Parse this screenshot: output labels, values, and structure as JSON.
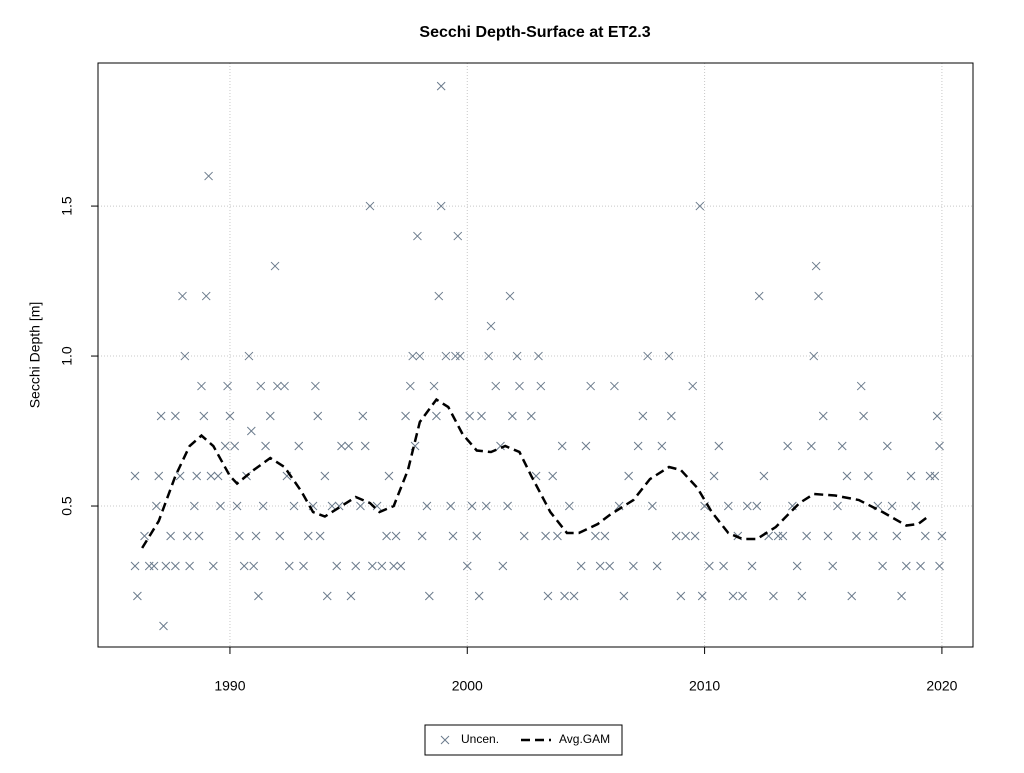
{
  "chart_data": {
    "type": "scatter",
    "title": "Secchi Depth-Surface at ET2.3",
    "y_label": "Secchi Depth [m]",
    "xlim": [
      1984.44,
      2021.31
    ],
    "ylim": [
      0.03,
      1.977
    ],
    "xticks": [
      1990,
      2000,
      2010,
      2020
    ],
    "yticks": [
      0.5,
      {
        "value": 1,
        "label": "1.0"
      },
      1.5
    ],
    "grid": true,
    "legend": "bottom",
    "series": [
      {
        "name": "Uncen.",
        "type": "scatter",
        "color": "#6b7b8c",
        "x": [
          1986.0,
          1986.0,
          1986.1,
          1986.4,
          1986.6,
          1986.8,
          1986.9,
          1987.0,
          1987.1,
          1987.2,
          1987.3,
          1987.5,
          1987.7,
          1987.7,
          1987.9,
          1988.0,
          1988.1,
          1988.2,
          1988.3,
          1988.5,
          1988.6,
          1988.7,
          1988.8,
          1988.9,
          1989.0,
          1989.1,
          1989.2,
          1989.3,
          1989.5,
          1989.6,
          1989.8,
          1989.9,
          1990.0,
          1990.2,
          1990.3,
          1990.4,
          1990.6,
          1990.7,
          1990.8,
          1990.9,
          1991.0,
          1991.1,
          1991.2,
          1991.3,
          1991.4,
          1991.5,
          1991.7,
          1991.9,
          1992.0,
          1992.1,
          1992.3,
          1992.4,
          1992.5,
          1992.7,
          1992.9,
          1993.1,
          1993.3,
          1993.5,
          1993.6,
          1993.7,
          1993.8,
          1994.0,
          1994.1,
          1994.3,
          1994.5,
          1994.6,
          1994.7,
          1995.0,
          1995.1,
          1995.3,
          1995.5,
          1995.6,
          1995.7,
          1995.9,
          1996.0,
          1996.2,
          1996.4,
          1996.6,
          1996.7,
          1996.9,
          1997.0,
          1997.2,
          1997.4,
          1997.6,
          1997.7,
          1997.8,
          1997.9,
          1998.0,
          1998.1,
          1998.3,
          1998.4,
          1998.6,
          1998.7,
          1998.8,
          1998.9,
          1998.9,
          1999.1,
          1999.3,
          1999.4,
          1999.5,
          1999.6,
          1999.7,
          2000.0,
          2000.1,
          2000.2,
          2000.4,
          2000.5,
          2000.6,
          2000.8,
          2000.9,
          2001.0,
          2001.2,
          2001.4,
          2001.5,
          2001.7,
          2001.8,
          2001.9,
          2002.1,
          2002.2,
          2002.4,
          2002.7,
          2002.9,
          2003.0,
          2003.1,
          2003.3,
          2003.4,
          2003.6,
          2003.8,
          2004.0,
          2004.1,
          2004.3,
          2004.5,
          2004.8,
          2005.0,
          2005.2,
          2005.4,
          2005.6,
          2005.8,
          2006.0,
          2006.2,
          2006.4,
          2006.6,
          2006.8,
          2007.0,
          2007.2,
          2007.4,
          2007.6,
          2007.8,
          2008.0,
          2008.2,
          2008.5,
          2008.6,
          2008.8,
          2009.0,
          2009.2,
          2009.5,
          2009.6,
          2009.8,
          2009.9,
          2010.0,
          2010.2,
          2010.4,
          2010.6,
          2010.8,
          2011.0,
          2011.2,
          2011.4,
          2011.6,
          2011.8,
          2012.0,
          2012.2,
          2012.3,
          2012.5,
          2012.7,
          2012.9,
          2013.1,
          2013.3,
          2013.5,
          2013.7,
          2013.9,
          2014.1,
          2014.3,
          2014.5,
          2014.6,
          2014.7,
          2014.8,
          2015.0,
          2015.2,
          2015.4,
          2015.6,
          2015.8,
          2016.0,
          2016.2,
          2016.4,
          2016.6,
          2016.7,
          2016.9,
          2017.1,
          2017.3,
          2017.5,
          2017.7,
          2017.9,
          2018.1,
          2018.3,
          2018.5,
          2018.7,
          2018.9,
          2019.1,
          2019.3,
          2019.5,
          2019.7,
          2019.8,
          2019.9,
          2019.9,
          2020.0
        ],
        "values": [
          0.6,
          0.3,
          0.2,
          0.4,
          0.3,
          0.3,
          0.5,
          0.6,
          0.8,
          0.1,
          0.3,
          0.4,
          0.3,
          0.8,
          0.6,
          1.2,
          1.0,
          0.4,
          0.3,
          0.5,
          0.6,
          0.4,
          0.9,
          0.8,
          1.2,
          1.6,
          0.6,
          0.3,
          0.6,
          0.5,
          0.7,
          0.9,
          0.8,
          0.7,
          0.5,
          0.4,
          0.3,
          0.6,
          1.0,
          0.75,
          0.3,
          0.4,
          0.2,
          0.9,
          0.5,
          0.7,
          0.8,
          1.3,
          0.9,
          0.4,
          0.9,
          0.6,
          0.3,
          0.5,
          0.7,
          0.3,
          0.4,
          0.5,
          0.9,
          0.8,
          0.4,
          0.6,
          0.2,
          0.5,
          0.3,
          0.5,
          0.7,
          0.7,
          0.2,
          0.3,
          0.5,
          0.8,
          0.7,
          1.5,
          0.3,
          0.5,
          0.3,
          0.4,
          0.6,
          0.3,
          0.4,
          0.3,
          0.8,
          0.9,
          1.0,
          0.7,
          1.4,
          1.0,
          0.4,
          0.5,
          0.2,
          0.9,
          0.8,
          1.2,
          1.5,
          1.9,
          1.0,
          0.5,
          0.4,
          1.0,
          1.4,
          1.0,
          0.3,
          0.8,
          0.5,
          0.4,
          0.2,
          0.8,
          0.5,
          1.0,
          1.1,
          0.9,
          0.7,
          0.3,
          0.5,
          1.2,
          0.8,
          1.0,
          0.9,
          0.4,
          0.8,
          0.6,
          1.0,
          0.9,
          0.4,
          0.2,
          0.6,
          0.4,
          0.7,
          0.2,
          0.5,
          0.2,
          0.3,
          0.7,
          0.9,
          0.4,
          0.3,
          0.4,
          0.3,
          0.9,
          0.5,
          0.2,
          0.6,
          0.3,
          0.7,
          0.8,
          1.0,
          0.5,
          0.3,
          0.7,
          1.0,
          0.8,
          0.4,
          0.2,
          0.4,
          0.9,
          0.4,
          1.5,
          0.2,
          0.5,
          0.3,
          0.6,
          0.7,
          0.3,
          0.5,
          0.2,
          0.4,
          0.2,
          0.5,
          0.3,
          0.5,
          1.2,
          0.6,
          0.4,
          0.2,
          0.4,
          0.4,
          0.7,
          0.5,
          0.3,
          0.2,
          0.4,
          0.7,
          1.0,
          1.3,
          1.2,
          0.8,
          0.4,
          0.3,
          0.5,
          0.7,
          0.6,
          0.2,
          0.4,
          0.9,
          0.8,
          0.6,
          0.4,
          0.5,
          0.3,
          0.7,
          0.5,
          0.4,
          0.2,
          0.3,
          0.6,
          0.5,
          0.3,
          0.4,
          0.6,
          0.6,
          0.8,
          0.7,
          0.3,
          0.4
        ]
      },
      {
        "name": "Avg.GAM",
        "type": "line",
        "color": "#000000",
        "x": [
          1986.3,
          1987.0,
          1987.7,
          1988.3,
          1988.8,
          1989.3,
          1990.0,
          1990.3,
          1991.0,
          1991.7,
          1992.3,
          1993.0,
          1993.5,
          1994.0,
          1994.7,
          1995.3,
          1995.9,
          1996.3,
          1996.9,
          1997.5,
          1998.0,
          1998.7,
          1999.2,
          1999.8,
          2000.4,
          2001.0,
          2001.6,
          2002.2,
          2002.7,
          2003.5,
          2004.2,
          2004.7,
          2005.5,
          2006.0,
          2007.0,
          2007.7,
          2008.5,
          2009.0,
          2009.7,
          2010.3,
          2011.0,
          2011.6,
          2012.2,
          2013.0,
          2014.0,
          2014.6,
          2015.5,
          2016.5,
          2017.5,
          2018.5,
          2019.0,
          2019.5
        ],
        "values": [
          0.36,
          0.45,
          0.6,
          0.7,
          0.735,
          0.7,
          0.6,
          0.575,
          0.62,
          0.66,
          0.63,
          0.55,
          0.48,
          0.465,
          0.5,
          0.53,
          0.51,
          0.48,
          0.5,
          0.62,
          0.78,
          0.855,
          0.83,
          0.74,
          0.685,
          0.68,
          0.7,
          0.68,
          0.6,
          0.48,
          0.41,
          0.41,
          0.44,
          0.47,
          0.52,
          0.59,
          0.63,
          0.62,
          0.56,
          0.48,
          0.41,
          0.39,
          0.39,
          0.43,
          0.51,
          0.54,
          0.535,
          0.52,
          0.48,
          0.435,
          0.44,
          0.47
        ]
      }
    ]
  }
}
